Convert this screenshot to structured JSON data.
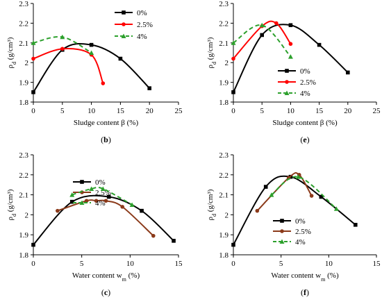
{
  "chart_data": [
    {
      "panel_label": "(b)",
      "type": "line",
      "xlabel": "Sludge content β (%)",
      "ylabel": "ρd (g/cm³)",
      "xlim": [
        0,
        25
      ],
      "ylim": [
        1.8,
        2.3
      ],
      "xticks": [
        "0",
        "5",
        "10",
        "15",
        "20",
        "25"
      ],
      "yticks": [
        "1.8",
        "1.9",
        "2",
        "2.1",
        "2.2",
        "2.3"
      ],
      "legend": "inside-top-right",
      "series": [
        {
          "name": "0%",
          "color": "#000000",
          "marker": "square",
          "dashed": false,
          "x": [
            0,
            5,
            10,
            15,
            20
          ],
          "y": [
            1.85,
            2.065,
            2.09,
            2.02,
            1.87
          ]
        },
        {
          "name": "2.5%",
          "color": "#ff0000",
          "marker": "circle",
          "dashed": false,
          "x": [
            0,
            5,
            10,
            12
          ],
          "y": [
            2.02,
            2.07,
            2.04,
            1.895
          ]
        },
        {
          "name": "4%",
          "color": "#2ca02c",
          "marker": "triangle",
          "dashed": true,
          "x": [
            0,
            5,
            10
          ],
          "y": [
            2.1,
            2.13,
            2.05
          ]
        }
      ]
    },
    {
      "panel_label": "(e)",
      "type": "line",
      "xlabel": "Sludge content β (%)",
      "ylabel": "ρd (g/cm³)",
      "xlim": [
        0,
        25
      ],
      "ylim": [
        1.8,
        2.3
      ],
      "xticks": [
        "0",
        "5",
        "10",
        "15",
        "20",
        "25"
      ],
      "yticks": [
        "1.8",
        "1.9",
        "2",
        "2.1",
        "2.2",
        "2.3"
      ],
      "legend": "inside-lower-middle",
      "series": [
        {
          "name": "0%",
          "color": "#000000",
          "marker": "square",
          "dashed": false,
          "x": [
            0,
            5,
            10,
            15,
            20
          ],
          "y": [
            1.85,
            2.14,
            2.19,
            2.09,
            1.95
          ]
        },
        {
          "name": "2.5%",
          "color": "#ff0000",
          "marker": "circle",
          "dashed": false,
          "x": [
            0,
            5,
            7.5,
            10
          ],
          "y": [
            2.02,
            2.185,
            2.2,
            2.095
          ]
        },
        {
          "name": "4%",
          "color": "#2ca02c",
          "marker": "triangle",
          "dashed": true,
          "x": [
            0,
            5,
            10
          ],
          "y": [
            2.1,
            2.19,
            2.03
          ]
        }
      ]
    },
    {
      "panel_label": "(c)",
      "type": "line",
      "xlabel": "Water content wm (%)",
      "ylabel": "ρd (g/cm³)",
      "xlim": [
        0,
        15
      ],
      "ylim": [
        1.8,
        2.3
      ],
      "xticks": [
        "0",
        "5",
        "10",
        "15"
      ],
      "yticks": [
        "1.8",
        "1.9",
        "2",
        "2.1",
        "2.2",
        "2.3"
      ],
      "legend": "inside-lower-middle",
      "series": [
        {
          "name": "0%",
          "color": "#000000",
          "marker": "square",
          "dashed": false,
          "x": [
            0,
            4,
            7.8,
            11.2,
            14.5
          ],
          "y": [
            1.85,
            2.065,
            2.09,
            2.02,
            1.87
          ]
        },
        {
          "name": "2.5%",
          "color": "#8b3a1a",
          "marker": "circle",
          "dashed": false,
          "x": [
            2.5,
            5.5,
            6.5,
            7.5,
            9.2,
            12.4
          ],
          "y": [
            2.02,
            2.07,
            2.07,
            2.07,
            2.04,
            1.895
          ]
        },
        {
          "name": "4%",
          "color": "#2ca02c",
          "marker": "triangle",
          "dashed": true,
          "x": [
            4,
            6,
            7.2,
            10.2
          ],
          "y": [
            2.1,
            2.13,
            2.13,
            2.05
          ]
        }
      ]
    },
    {
      "panel_label": "(f)",
      "type": "line",
      "xlabel": "Water content wm (%)",
      "ylabel": "ρd (g/cm³)",
      "xlim": [
        0,
        15
      ],
      "ylim": [
        1.8,
        2.3
      ],
      "xticks": [
        "0",
        "5",
        "10",
        "15"
      ],
      "yticks": [
        "1.8",
        "1.9",
        "2",
        "2.1",
        "2.2",
        "2.3"
      ],
      "legend": "inside-lower-middle",
      "series": [
        {
          "name": "0%",
          "color": "#000000",
          "marker": "square",
          "dashed": false,
          "x": [
            0,
            3.4,
            6,
            9.2,
            12.8
          ],
          "y": [
            1.85,
            2.14,
            2.19,
            2.09,
            1.95
          ]
        },
        {
          "name": "2.5%",
          "color": "#8b3a1a",
          "marker": "circle",
          "dashed": false,
          "x": [
            2.5,
            5.8,
            6.9,
            8.2
          ],
          "y": [
            2.02,
            2.185,
            2.2,
            2.095
          ]
        },
        {
          "name": "4%",
          "color": "#2ca02c",
          "marker": "triangle",
          "dashed": true,
          "x": [
            4,
            6.8,
            10.8
          ],
          "y": [
            2.1,
            2.19,
            2.03
          ]
        }
      ]
    }
  ]
}
